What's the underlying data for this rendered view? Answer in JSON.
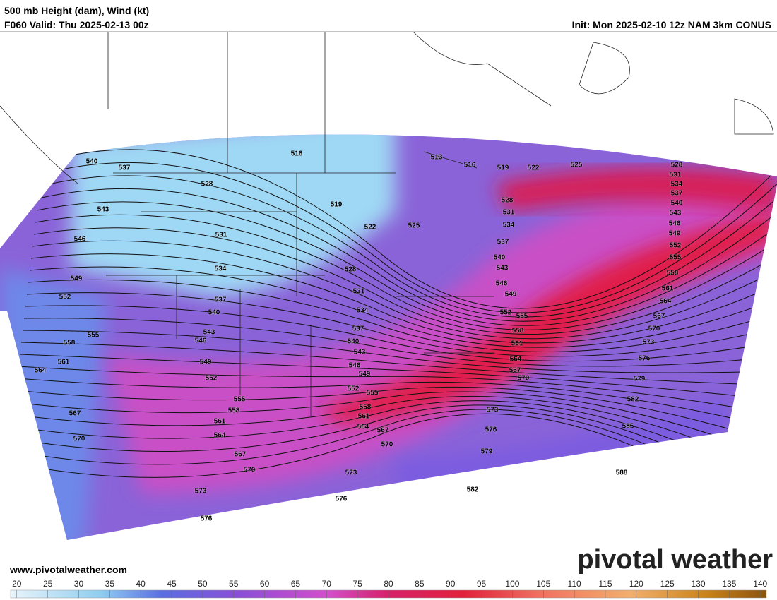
{
  "header": {
    "title": "500 mb Height (dam), Wind (kt)",
    "valid": "F060 Valid: Thu 2025-02-13 00z",
    "init": "Init: Mon 2025-02-10 12z NAM 3km CONUS"
  },
  "website": "www.pivotalweather.com",
  "logo": "pivotal weather",
  "colorbar": {
    "lim": [
      19,
      141
    ],
    "ticks": [
      20,
      25,
      30,
      35,
      40,
      45,
      50,
      55,
      60,
      65,
      70,
      75,
      80,
      85,
      90,
      95,
      100,
      105,
      110,
      115,
      120,
      125,
      130,
      135,
      140
    ]
  },
  "contour_labels": [
    "516",
    "513",
    "516",
    "519",
    "522",
    "525",
    "528",
    "531",
    "534",
    "537",
    "540",
    "543",
    "546",
    "549",
    "552",
    "555",
    "558",
    "561",
    "564",
    "567",
    "570",
    "573",
    "576",
    "579",
    "582",
    "585",
    "588",
    "540",
    "537",
    "528",
    "519",
    "522",
    "525",
    "528",
    "531",
    "534",
    "537",
    "540",
    "543",
    "546",
    "549",
    "552",
    "555",
    "558",
    "561",
    "564",
    "567",
    "570",
    "543",
    "546",
    "549",
    "552",
    "555",
    "558",
    "561",
    "564",
    "567",
    "570",
    "573",
    "576",
    "531",
    "534",
    "537",
    "540",
    "543",
    "546",
    "549",
    "552",
    "555",
    "558",
    "561",
    "564",
    "567",
    "570",
    "573",
    "576",
    "528",
    "531",
    "534",
    "537",
    "540",
    "543",
    "546",
    "549",
    "552",
    "555",
    "558",
    "561",
    "564",
    "567",
    "570",
    "573",
    "576",
    "579",
    "582"
  ]
}
